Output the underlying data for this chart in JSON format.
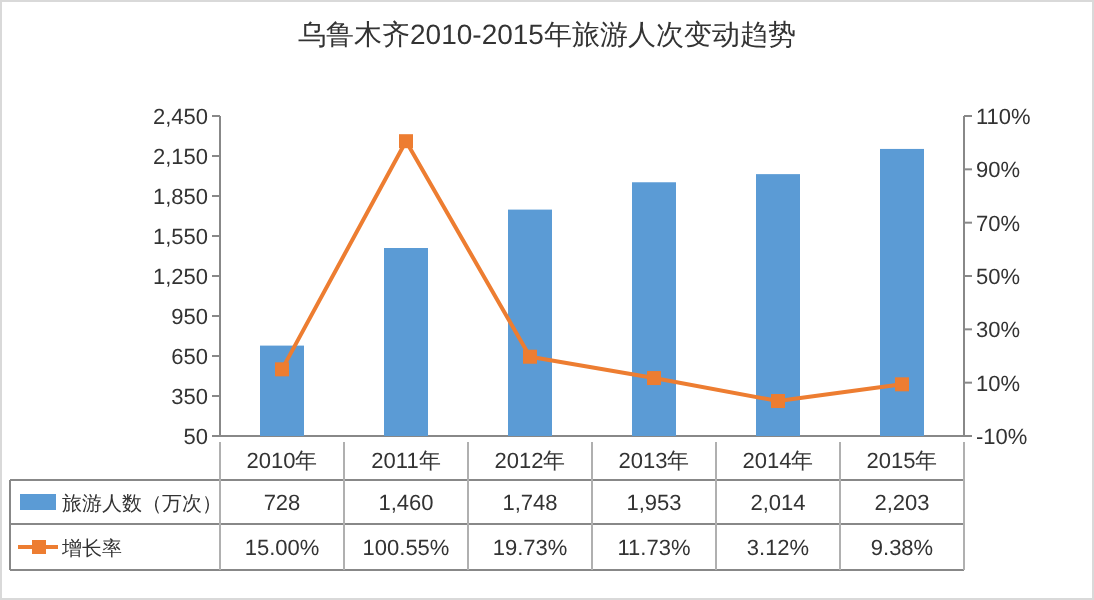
{
  "chart_data": {
    "type": "bar",
    "title": "乌鲁木齐2010-2015年旅游人次变动趋势",
    "categories": [
      "2010年",
      "2011年",
      "2012年",
      "2013年",
      "2014年",
      "2015年"
    ],
    "series": [
      {
        "name": "旅游人数（万次）",
        "color": "#5b9bd5",
        "values": [
          728,
          1460,
          1748,
          1953,
          2014,
          2203
        ],
        "value_labels": [
          "728",
          "1,460",
          "1,748",
          "1,953",
          "2,014",
          "2,203"
        ]
      },
      {
        "name": "增长率",
        "type": "line",
        "axis": "y2",
        "color": "#ed7d31",
        "marker": "square",
        "values": [
          15.0,
          100.55,
          19.73,
          11.73,
          3.12,
          9.38
        ],
        "value_labels": [
          "15.00%",
          "100.55%",
          "19.73%",
          "11.73%",
          "3.12%",
          "9.38%"
        ]
      }
    ],
    "ylim": [
      50,
      2450
    ],
    "yticks": [
      50,
      350,
      650,
      950,
      {
        "value": 1250,
        "label": "1,250"
      },
      {
        "value": 1550,
        "label": "1,550"
      },
      {
        "value": 1850,
        "label": "1,850"
      },
      {
        "value": 2150,
        "label": "2,150"
      },
      {
        "value": 2450,
        "label": "2,450"
      }
    ],
    "y2lim": [
      -10,
      110
    ],
    "y2ticks": [
      {
        "value": -10,
        "label": "-10%"
      },
      {
        "value": 10,
        "label": "10%"
      },
      {
        "value": 30,
        "label": "30%"
      },
      {
        "value": 50,
        "label": "50%"
      },
      {
        "value": 70,
        "label": "70%"
      },
      {
        "value": 90,
        "label": "90%"
      },
      {
        "value": 110,
        "label": "110%"
      }
    ],
    "legend": "bottom"
  }
}
